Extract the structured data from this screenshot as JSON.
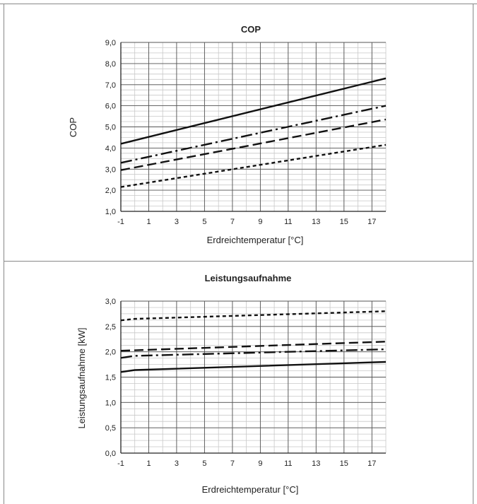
{
  "chart_data": [
    {
      "type": "line",
      "title": "COP",
      "xlabel": "Erdreichtemperatur [°C]",
      "ylabel": "COP",
      "xlim": [
        -1,
        18
      ],
      "ylim": [
        1.0,
        9.0
      ],
      "x_ticks": [
        "-1",
        "1",
        "3",
        "5",
        "7",
        "9",
        "11",
        "13",
        "15",
        "17"
      ],
      "y_ticks": [
        "1,0",
        "2,0",
        "3,0",
        "4,0",
        "5,0",
        "6,0",
        "7,0",
        "8,0",
        "9,0"
      ],
      "grid": true,
      "series": [
        {
          "style": "solid",
          "x": [
            -1,
            18
          ],
          "y": [
            4.2,
            7.3
          ]
        },
        {
          "style": "dash-dot",
          "x": [
            -1,
            18
          ],
          "y": [
            3.3,
            6.0
          ]
        },
        {
          "style": "long-dash",
          "x": [
            -1,
            18
          ],
          "y": [
            2.95,
            5.35
          ]
        },
        {
          "style": "short-dash",
          "x": [
            -1,
            18
          ],
          "y": [
            2.15,
            4.15
          ]
        }
      ]
    },
    {
      "type": "line",
      "title": "Leistungsaufnahme",
      "xlabel": "Erdreichtemperatur [°C]",
      "ylabel": "Leistungsaufnahme [kW]",
      "xlim": [
        -1,
        18
      ],
      "ylim": [
        0.0,
        3.0
      ],
      "x_ticks": [
        "-1",
        "1",
        "3",
        "5",
        "7",
        "9",
        "11",
        "13",
        "15",
        "17"
      ],
      "y_ticks": [
        "0,0",
        "0,5",
        "1,0",
        "1,5",
        "2,0",
        "2,5",
        "3,0"
      ],
      "grid": true,
      "series": [
        {
          "style": "short-dash",
          "x": [
            -1,
            0,
            18
          ],
          "y": [
            2.62,
            2.65,
            2.8
          ]
        },
        {
          "style": "long-dash",
          "x": [
            -1,
            18
          ],
          "y": [
            2.02,
            2.2
          ]
        },
        {
          "style": "dash-dot",
          "x": [
            -1,
            0,
            18
          ],
          "y": [
            1.88,
            1.92,
            2.05
          ]
        },
        {
          "style": "solid",
          "x": [
            -1,
            0,
            18
          ],
          "y": [
            1.6,
            1.64,
            1.8
          ]
        }
      ]
    }
  ]
}
